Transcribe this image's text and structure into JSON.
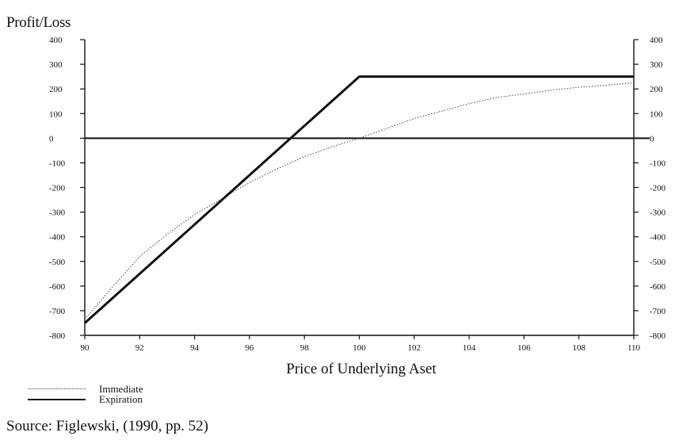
{
  "chart_data": {
    "type": "line",
    "ylabel": "Profit/Loss",
    "xlabel": "Price of Underlying Aset",
    "xlim": [
      90,
      110
    ],
    "ylim": [
      -800,
      400
    ],
    "x_ticks": [
      90,
      92,
      94,
      96,
      98,
      100,
      102,
      104,
      106,
      108,
      110
    ],
    "y_ticks": [
      400,
      300,
      200,
      100,
      0,
      -100,
      -200,
      -300,
      -400,
      -500,
      -600,
      -700,
      -800
    ],
    "right_axis_ticks": [
      400,
      300,
      200,
      100,
      0,
      -100,
      -200,
      -300,
      -400,
      -500,
      -600,
      -700,
      -800
    ],
    "zero_line": true,
    "grid": false,
    "legend_position": "bottom-left",
    "series": [
      {
        "name": "Immediate",
        "style": "dotted",
        "color": "#444444",
        "x": [
          90,
          91,
          92,
          93,
          94,
          95,
          96,
          97,
          98,
          99,
          100,
          101,
          102,
          103,
          104,
          105,
          106,
          107,
          108,
          109,
          110
        ],
        "y": [
          -735,
          -605,
          -480,
          -390,
          -310,
          -245,
          -180,
          -125,
          -75,
          -35,
          0,
          40,
          80,
          110,
          140,
          165,
          180,
          195,
          207,
          215,
          225
        ]
      },
      {
        "name": "Expiration",
        "style": "solid",
        "color": "#111111",
        "x": [
          90,
          100,
          110
        ],
        "y": [
          -750,
          250,
          250
        ]
      }
    ],
    "source": "Source: Figlewski, (1990, pp. 52)"
  }
}
